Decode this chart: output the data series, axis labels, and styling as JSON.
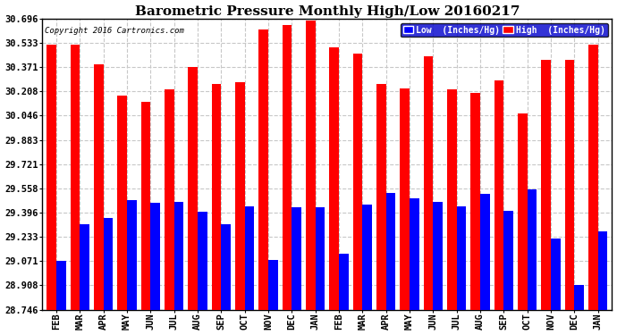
{
  "title": "Barometric Pressure Monthly High/Low 20160217",
  "copyright": "Copyright 2016 Cartronics.com",
  "months": [
    "FEB",
    "MAR",
    "APR",
    "MAY",
    "JUN",
    "JUL",
    "AUG",
    "SEP",
    "OCT",
    "NOV",
    "DEC",
    "JAN",
    "FEB",
    "MAR",
    "APR",
    "MAY",
    "JUN",
    "JUL",
    "AUG",
    "SEP",
    "OCT",
    "NOV",
    "DEC",
    "JAN"
  ],
  "high": [
    30.52,
    30.52,
    30.39,
    30.18,
    30.14,
    30.22,
    30.37,
    30.26,
    30.27,
    30.62,
    30.65,
    30.68,
    30.5,
    30.46,
    30.26,
    30.23,
    30.44,
    30.22,
    30.2,
    30.28,
    30.06,
    30.42,
    30.42,
    30.52
  ],
  "low": [
    29.07,
    29.32,
    29.36,
    29.48,
    29.46,
    29.47,
    29.4,
    29.32,
    29.44,
    29.08,
    29.43,
    29.43,
    29.12,
    29.45,
    29.53,
    29.49,
    29.47,
    29.44,
    29.52,
    29.41,
    29.55,
    29.22,
    28.91,
    29.27
  ],
  "ymin": 28.746,
  "ymax": 30.696,
  "yticks": [
    28.746,
    28.908,
    29.071,
    29.233,
    29.396,
    29.558,
    29.721,
    29.883,
    30.046,
    30.208,
    30.371,
    30.533,
    30.696
  ],
  "high_color": "#ff0000",
  "low_color": "#0000ff",
  "bg_color": "#ffffff",
  "grid_color": "#c8c8c8",
  "title_fontsize": 11,
  "tick_fontsize": 7.5,
  "legend_labels": [
    "Low  (Inches/Hg)",
    "High  (Inches/Hg)"
  ],
  "bar_width": 0.4
}
